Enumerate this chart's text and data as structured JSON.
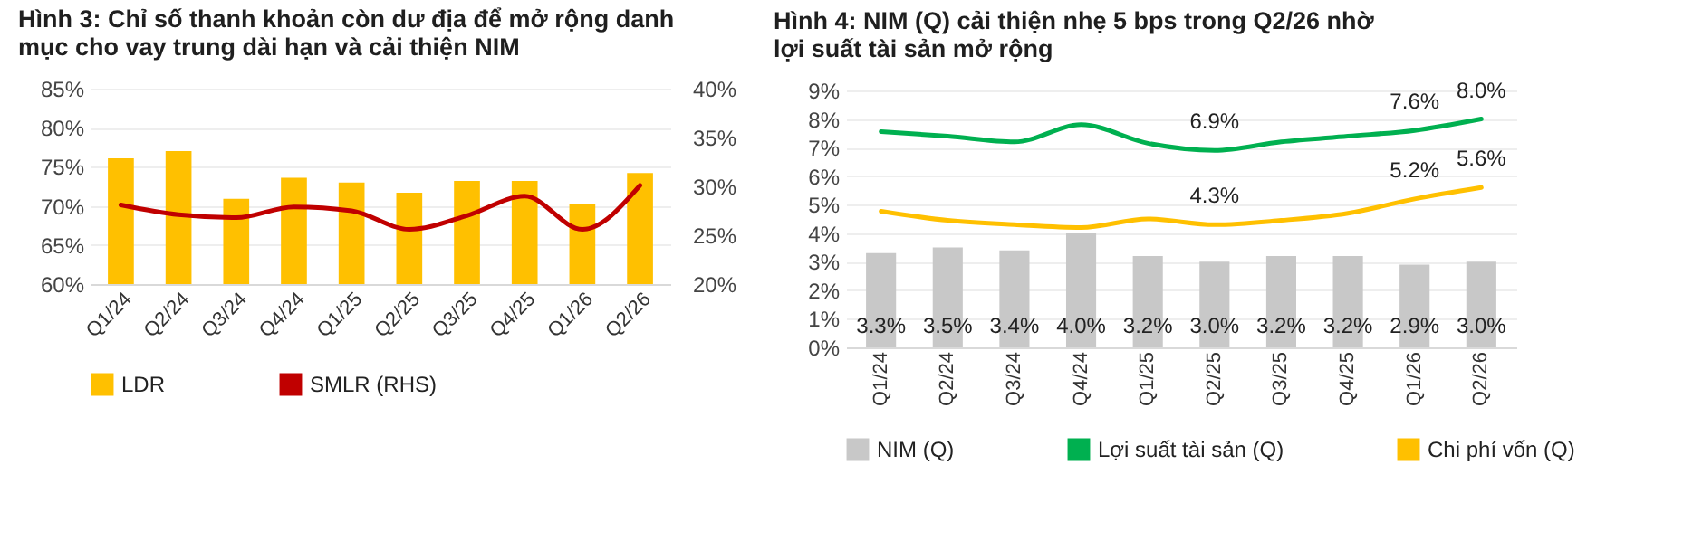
{
  "chart_data": [
    {
      "type": "bar",
      "title": "Hình 3: Chỉ số thanh khoản còn dư địa để mở rộng danh mục cho vay trung dài hạn và cải thiện NIM",
      "categories": [
        "Q1/24",
        "Q2/24",
        "Q3/24",
        "Q4/24",
        "Q1/25",
        "Q2/25",
        "Q3/25",
        "Q4/25",
        "Q1/26",
        "Q2/26"
      ],
      "series": [
        {
          "name": "LDR",
          "color": "#ffc000",
          "values": [
            76.1,
            77.0,
            70.9,
            73.6,
            73.0,
            71.7,
            73.2,
            73.2,
            70.2,
            74.2
          ]
        },
        {
          "name": "SMLR (RHS)",
          "type": "line",
          "axis": "y2",
          "color": "#c00000",
          "values": [
            28.1,
            27.1,
            26.8,
            27.9,
            27.5,
            25.6,
            27.0,
            29.0,
            25.6,
            30.1
          ]
        }
      ],
      "ylim": [
        60,
        85
      ],
      "yticks": [
        {
          "value": 60,
          "label": "60%"
        },
        {
          "value": 65,
          "label": "65%"
        },
        {
          "value": 70,
          "label": "70%"
        },
        {
          "value": 75,
          "label": "75%"
        },
        {
          "value": 80,
          "label": "80%"
        },
        {
          "value": 85,
          "label": "85%"
        }
      ],
      "y2lim": [
        20,
        40
      ],
      "y2ticks": [
        {
          "value": 20,
          "label": "20%"
        },
        {
          "value": 25,
          "label": "25%"
        },
        {
          "value": 30,
          "label": "30%"
        },
        {
          "value": 35,
          "label": "35%"
        },
        {
          "value": 40,
          "label": "40%"
        }
      ],
      "grid": "y",
      "legend": "bottom"
    },
    {
      "type": "bar",
      "title": "Hình 4: NIM (Q) cải thiện nhẹ 5 bps trong Q2/26 nhờ lợi suất tài sản mở rộng",
      "categories": [
        "Q1/24",
        "Q2/24",
        "Q3/24",
        "Q4/24",
        "Q1/25",
        "Q2/25",
        "Q3/25",
        "Q4/25",
        "Q1/26",
        "Q2/26"
      ],
      "series": [
        {
          "name": "NIM (Q)",
          "color": "#c8c8c8",
          "values": [
            3.3,
            3.5,
            3.4,
            4.0,
            3.2,
            3.0,
            3.2,
            3.2,
            2.9,
            3.0
          ],
          "value_labels": [
            "3.3%",
            "3.5%",
            "3.4%",
            "4.0%",
            "3.2%",
            "3.0%",
            "3.2%",
            "3.2%",
            "2.9%",
            "3.0%"
          ]
        },
        {
          "name": "Lợi suất tài sản (Q)",
          "type": "line",
          "color": "#00b050",
          "values": [
            7.56,
            7.4,
            7.2,
            7.8,
            7.15,
            6.9,
            7.2,
            7.4,
            7.6,
            8.0
          ],
          "value_labels": [
            null,
            null,
            null,
            null,
            null,
            "6.9%",
            null,
            null,
            "7.6%",
            "8.0%"
          ]
        },
        {
          "name": "Chi phí vốn (Q)",
          "type": "line",
          "color": "#ffc000",
          "values": [
            4.77,
            4.45,
            4.3,
            4.2,
            4.5,
            4.3,
            4.45,
            4.7,
            5.2,
            5.6
          ],
          "value_labels": [
            null,
            null,
            null,
            null,
            null,
            "4.3%",
            null,
            null,
            "5.2%",
            "5.6%"
          ]
        }
      ],
      "ylim": [
        0,
        9
      ],
      "yticks": [
        {
          "value": 0,
          "label": "0%"
        },
        {
          "value": 1,
          "label": "1%"
        },
        {
          "value": 2,
          "label": "2%"
        },
        {
          "value": 3,
          "label": "3%"
        },
        {
          "value": 4,
          "label": "4%"
        },
        {
          "value": 5,
          "label": "5%"
        },
        {
          "value": 6,
          "label": "6%"
        },
        {
          "value": 7,
          "label": "7%"
        },
        {
          "value": 8,
          "label": "8%"
        },
        {
          "value": 9,
          "label": "9%"
        }
      ],
      "grid": "y",
      "legend": "bottom"
    }
  ]
}
